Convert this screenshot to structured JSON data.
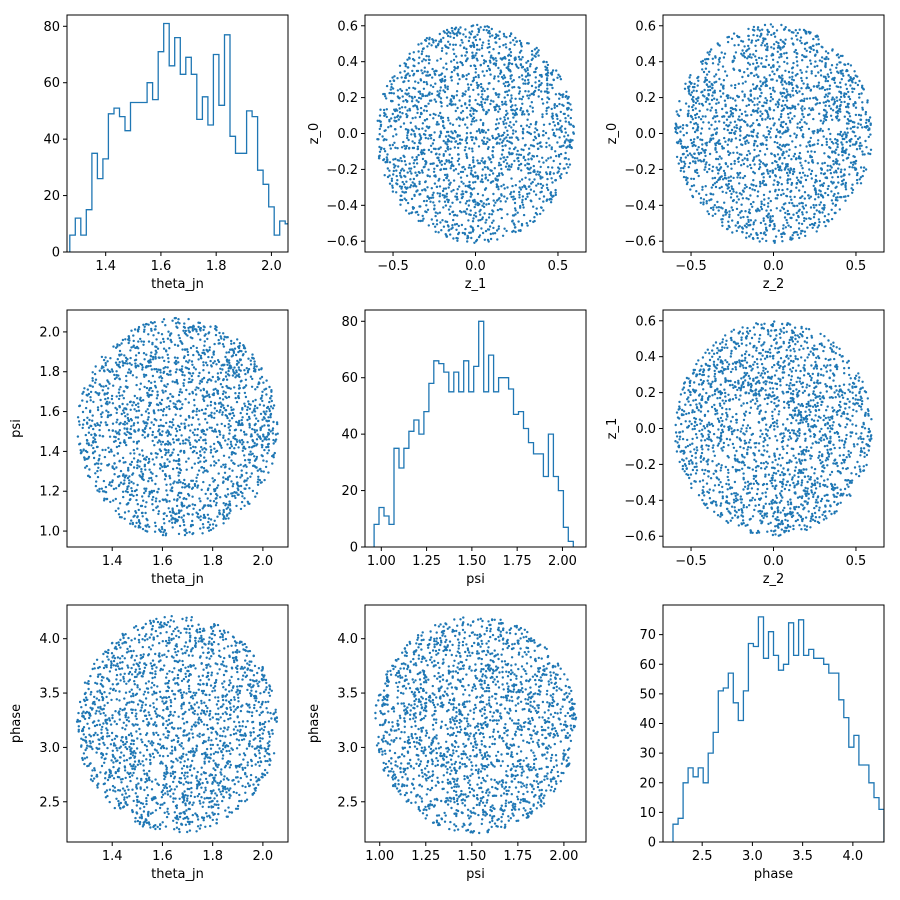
{
  "figure": {
    "background": "#ffffff",
    "series_color": "#1f77b4"
  },
  "chart_data": [
    {
      "id": "p00",
      "type": "histogram",
      "xlabel": "theta_jn",
      "ylabel": "",
      "xlim": [
        1.26,
        2.06
      ],
      "ylim": [
        0,
        84
      ],
      "xticks": [
        1.4,
        1.6,
        1.8,
        2.0
      ],
      "xticklabels": [
        "1.4",
        "1.6",
        "1.8",
        "2.0"
      ],
      "yticks": [
        0,
        20,
        40,
        60,
        80
      ],
      "yticklabels": [
        "0",
        "20",
        "40",
        "60",
        "80"
      ],
      "bin_start": 1.27,
      "bin_width": 0.02,
      "counts": [
        6,
        12,
        6,
        15,
        35,
        26,
        33,
        49,
        51,
        48,
        43,
        53,
        53,
        53,
        60,
        54,
        71,
        81,
        66,
        76,
        63,
        69,
        63,
        47,
        55,
        45,
        70,
        52,
        77,
        41,
        35,
        35,
        50,
        48,
        29,
        24,
        16,
        6,
        11,
        10
      ]
    },
    {
      "id": "p01",
      "type": "scatter",
      "xlabel": "z_1",
      "ylabel": "z_0",
      "xlim": [
        -0.67,
        0.67
      ],
      "ylim": [
        -0.66,
        0.66
      ],
      "xticks": [
        -0.5,
        0.0,
        0.5
      ],
      "xticklabels": [
        "−0.5",
        "0.0",
        "0.5"
      ],
      "yticks": [
        -0.6,
        -0.4,
        -0.2,
        0.0,
        0.2,
        0.4,
        0.6
      ],
      "yticklabels": [
        "−0.6",
        "−0.4",
        "−0.2",
        "0.0",
        "0.2",
        "0.4",
        "0.6"
      ],
      "distribution": {
        "shape": "uniform-disk",
        "center": [
          0.0,
          0.0
        ],
        "radius_x": 0.6,
        "radius_y": 0.61,
        "n_points": 2000,
        "seed": 11
      }
    },
    {
      "id": "p02",
      "type": "scatter",
      "xlabel": "z_2",
      "ylabel": "z_0",
      "xlim": [
        -0.67,
        0.67
      ],
      "ylim": [
        -0.66,
        0.66
      ],
      "xticks": [
        -0.5,
        0.0,
        0.5
      ],
      "xticklabels": [
        "−0.5",
        "0.0",
        "0.5"
      ],
      "yticks": [
        -0.6,
        -0.4,
        -0.2,
        0.0,
        0.2,
        0.4,
        0.6
      ],
      "yticklabels": [
        "−0.6",
        "−0.4",
        "−0.2",
        "0.0",
        "0.2",
        "0.4",
        "0.6"
      ],
      "distribution": {
        "shape": "uniform-disk",
        "center": [
          0.0,
          0.0
        ],
        "radius_x": 0.6,
        "radius_y": 0.61,
        "n_points": 2000,
        "seed": 22
      }
    },
    {
      "id": "p10",
      "type": "scatter",
      "xlabel": "theta_jn",
      "ylabel": "psi",
      "xlim": [
        1.22,
        2.1
      ],
      "ylim": [
        0.92,
        2.11
      ],
      "xticks": [
        1.4,
        1.6,
        1.8,
        2.0
      ],
      "xticklabels": [
        "1.4",
        "1.6",
        "1.8",
        "2.0"
      ],
      "yticks": [
        1.0,
        1.2,
        1.4,
        1.6,
        1.8,
        2.0
      ],
      "yticklabels": [
        "1.0",
        "1.2",
        "1.4",
        "1.6",
        "1.8",
        "2.0"
      ],
      "distribution": {
        "shape": "uniform-disk",
        "center": [
          1.66,
          1.52
        ],
        "radius_x": 0.4,
        "radius_y": 0.55,
        "n_points": 2000,
        "seed": 33
      }
    },
    {
      "id": "p11",
      "type": "histogram",
      "xlabel": "psi",
      "ylabel": "",
      "xlim": [
        0.91,
        2.13
      ],
      "ylim": [
        0,
        84
      ],
      "xticks": [
        1.0,
        1.25,
        1.5,
        1.75,
        2.0
      ],
      "xticklabels": [
        "1.00",
        "1.25",
        "1.50",
        "1.75",
        "2.00"
      ],
      "yticks": [
        0,
        20,
        40,
        60,
        80
      ],
      "yticklabels": [
        "0",
        "20",
        "40",
        "60",
        "80"
      ],
      "bin_start": 0.96,
      "bin_width": 0.0275,
      "counts": [
        8,
        14,
        11,
        8,
        35,
        28,
        35,
        41,
        45,
        40,
        48,
        58,
        66,
        65,
        62,
        55,
        62,
        55,
        66,
        55,
        64,
        80,
        55,
        68,
        55,
        60,
        60,
        56,
        47,
        48,
        42,
        37,
        33,
        33,
        25,
        40,
        25,
        20,
        7,
        2
      ]
    },
    {
      "id": "p12",
      "type": "scatter",
      "xlabel": "z_2",
      "ylabel": "z_1",
      "xlim": [
        -0.67,
        0.67
      ],
      "ylim": [
        -0.66,
        0.66
      ],
      "xticks": [
        -0.5,
        0.0,
        0.5
      ],
      "xticklabels": [
        "−0.5",
        "0.0",
        "0.5"
      ],
      "yticks": [
        -0.6,
        -0.4,
        -0.2,
        0.0,
        0.2,
        0.4,
        0.6
      ],
      "yticklabels": [
        "−0.6",
        "−0.4",
        "−0.2",
        "0.0",
        "0.2",
        "0.4",
        "0.6"
      ],
      "distribution": {
        "shape": "uniform-disk",
        "center": [
          0.0,
          0.0
        ],
        "radius_x": 0.6,
        "radius_y": 0.6,
        "n_points": 2000,
        "seed": 44
      }
    },
    {
      "id": "p20",
      "type": "scatter",
      "xlabel": "theta_jn",
      "ylabel": "phase",
      "xlim": [
        1.22,
        2.1
      ],
      "ylim": [
        2.13,
        4.31
      ],
      "xticks": [
        1.4,
        1.6,
        1.8,
        2.0
      ],
      "xticklabels": [
        "1.4",
        "1.6",
        "1.8",
        "2.0"
      ],
      "yticks": [
        2.5,
        3.0,
        3.5,
        4.0
      ],
      "yticklabels": [
        "2.5",
        "3.0",
        "3.5",
        "4.0"
      ],
      "distribution": {
        "shape": "uniform-disk",
        "center": [
          1.66,
          3.21
        ],
        "radius_x": 0.4,
        "radius_y": 1.0,
        "n_points": 2000,
        "seed": 55
      }
    },
    {
      "id": "p21",
      "type": "scatter",
      "xlabel": "psi",
      "ylabel": "phase",
      "xlim": [
        0.92,
        2.12
      ],
      "ylim": [
        2.13,
        4.31
      ],
      "xticks": [
        1.0,
        1.25,
        1.5,
        1.75,
        2.0
      ],
      "xticklabels": [
        "1.00",
        "1.25",
        "1.50",
        "1.75",
        "2.00"
      ],
      "yticks": [
        2.5,
        3.0,
        3.5,
        4.0
      ],
      "yticklabels": [
        "2.5",
        "3.0",
        "3.5",
        "4.0"
      ],
      "distribution": {
        "shape": "uniform-disk",
        "center": [
          1.52,
          3.21
        ],
        "radius_x": 0.55,
        "radius_y": 1.0,
        "n_points": 2000,
        "seed": 66
      }
    },
    {
      "id": "p22",
      "type": "histogram",
      "xlabel": "phase",
      "ylabel": "",
      "xlim": [
        2.11,
        4.31
      ],
      "ylim": [
        0,
        80
      ],
      "xticks": [
        2.5,
        3.0,
        3.5,
        4.0
      ],
      "xticklabels": [
        "2.5",
        "3.0",
        "3.5",
        "4.0"
      ],
      "yticks": [
        0,
        10,
        20,
        30,
        40,
        50,
        60,
        70
      ],
      "yticklabels": [
        "0",
        "10",
        "20",
        "30",
        "40",
        "50",
        "60",
        "70"
      ],
      "bin_start": 2.21,
      "bin_width": 0.05,
      "counts": [
        6,
        8,
        20,
        25,
        22,
        25,
        20,
        30,
        37,
        51,
        52,
        57,
        47,
        41,
        51,
        67,
        66,
        76,
        62,
        71,
        63,
        58,
        60,
        74,
        63,
        75,
        63,
        65,
        62,
        62,
        60,
        57,
        57,
        48,
        42,
        32,
        36,
        26,
        26,
        20,
        15,
        11
      ]
    }
  ]
}
